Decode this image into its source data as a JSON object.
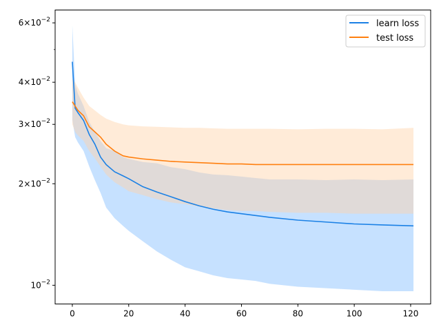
{
  "chart_data": {
    "type": "line",
    "title": "",
    "xlabel": "",
    "ylabel": "",
    "yscale": "log",
    "xlim": [
      -6.1,
      127.1
    ],
    "ylim": [
      0.0088,
      0.0655
    ],
    "grid": false,
    "legend_placement": "top-right",
    "x_ticks": [
      0,
      20,
      40,
      60,
      80,
      100,
      120
    ],
    "x_tick_labels": [
      "0",
      "20",
      "40",
      "60",
      "80",
      "100",
      "120"
    ],
    "y_ticks": [
      0.01,
      0.02,
      0.03,
      0.04,
      0.06
    ],
    "y_tick_labels": [
      {
        "base": "10",
        "mant": "",
        "exp": "−2",
        "value": 0.01
      },
      {
        "base": "10",
        "mant": "2",
        "exp": "−2",
        "value": 0.02
      },
      {
        "base": "10",
        "mant": "3",
        "exp": "−2",
        "value": 0.03
      },
      {
        "base": "10",
        "mant": "4",
        "exp": "−2",
        "value": 0.04
      },
      {
        "base": "10",
        "mant": "6",
        "exp": "−2",
        "value": 0.06
      }
    ],
    "y_minor_ticks": [
      0.05
    ],
    "series": [
      {
        "name": "learn loss",
        "color": "#1a80e5",
        "band_color": "#8ec4ff",
        "x": [
          0,
          1,
          2,
          4,
          6,
          8,
          10,
          12,
          15,
          18,
          20,
          25,
          30,
          35,
          40,
          45,
          50,
          55,
          60,
          65,
          70,
          80,
          90,
          100,
          110,
          121
        ],
        "mean": [
          0.046,
          0.0335,
          0.0325,
          0.0308,
          0.028,
          0.0262,
          0.024,
          0.0228,
          0.0217,
          0.0211,
          0.0207,
          0.0196,
          0.0189,
          0.0183,
          0.0177,
          0.0172,
          0.0168,
          0.0165,
          0.0163,
          0.0161,
          0.0159,
          0.0156,
          0.0154,
          0.0152,
          0.0151,
          0.015
        ],
        "upper": [
          0.059,
          0.0395,
          0.037,
          0.034,
          0.0305,
          0.0285,
          0.0268,
          0.0255,
          0.025,
          0.024,
          0.0237,
          0.0232,
          0.023,
          0.0224,
          0.0221,
          0.0216,
          0.0213,
          0.0212,
          0.021,
          0.0208,
          0.0206,
          0.0206,
          0.0205,
          0.0206,
          0.0205,
          0.0206
        ],
        "lower": [
          0.031,
          0.0275,
          0.0265,
          0.025,
          0.0225,
          0.0205,
          0.0188,
          0.017,
          0.0158,
          0.015,
          0.0145,
          0.0135,
          0.0126,
          0.0119,
          0.0113,
          0.011,
          0.0107,
          0.0105,
          0.0104,
          0.0103,
          0.0101,
          0.0099,
          0.0098,
          0.0097,
          0.0096,
          0.0096
        ]
      },
      {
        "name": "test loss",
        "color": "#ff7f0e",
        "band_color": "#ffd2a8",
        "x": [
          0,
          1,
          2,
          4,
          6,
          8,
          10,
          12,
          15,
          18,
          20,
          25,
          30,
          35,
          40,
          45,
          50,
          55,
          60,
          65,
          70,
          80,
          90,
          100,
          110,
          121
        ],
        "mean": [
          0.035,
          0.034,
          0.033,
          0.0318,
          0.0295,
          0.0285,
          0.0275,
          0.0262,
          0.025,
          0.0242,
          0.024,
          0.0237,
          0.0235,
          0.0233,
          0.0232,
          0.0231,
          0.023,
          0.0229,
          0.0229,
          0.0228,
          0.0228,
          0.0228,
          0.0228,
          0.0228,
          0.0228,
          0.0228
        ],
        "upper": [
          0.041,
          0.04,
          0.0385,
          0.036,
          0.034,
          0.033,
          0.032,
          0.0312,
          0.0305,
          0.03,
          0.0298,
          0.0296,
          0.0295,
          0.0294,
          0.0293,
          0.0293,
          0.0292,
          0.0291,
          0.0291,
          0.0291,
          0.0291,
          0.029,
          0.0291,
          0.0291,
          0.029,
          0.0293
        ],
        "lower": [
          0.03,
          0.0285,
          0.0278,
          0.0268,
          0.025,
          0.0238,
          0.0225,
          0.0213,
          0.0202,
          0.0195,
          0.019,
          0.0185,
          0.018,
          0.0176,
          0.0174,
          0.0171,
          0.0169,
          0.0167,
          0.0166,
          0.0166,
          0.0165,
          0.0164,
          0.0164,
          0.0163,
          0.0163,
          0.0163
        ]
      }
    ]
  }
}
